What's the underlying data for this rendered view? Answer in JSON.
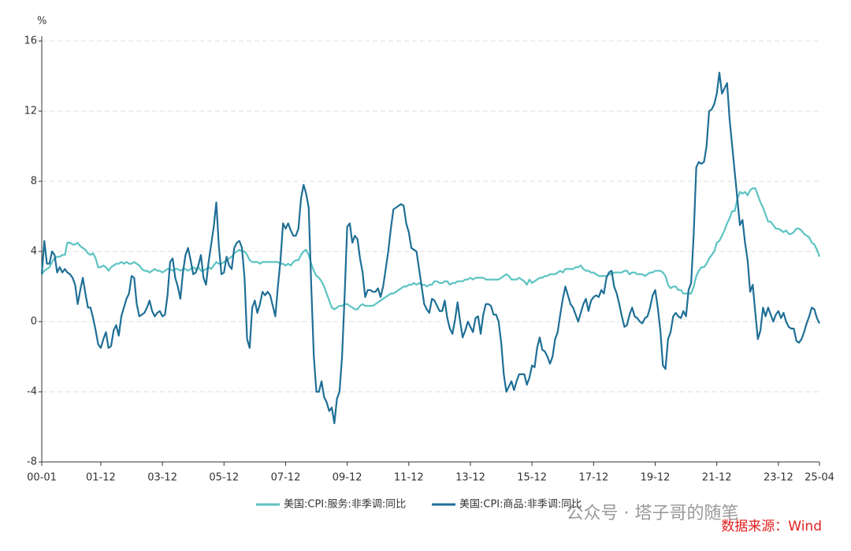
{
  "chart_data": {
    "type": "line",
    "y_unit": "%",
    "categories": [
      "00-01",
      null,
      null,
      null,
      null,
      null,
      null,
      null,
      null,
      null,
      null,
      null,
      null,
      null,
      null,
      null,
      null,
      null,
      null,
      null,
      null,
      null,
      null,
      "01-12",
      null,
      null,
      null,
      null,
      null,
      null,
      null,
      null,
      null,
      null,
      null,
      null,
      null,
      null,
      null,
      null,
      null,
      null,
      null,
      null,
      null,
      null,
      null,
      "03-12",
      null,
      null,
      null,
      null,
      null,
      null,
      null,
      null,
      null,
      null,
      null,
      null,
      null,
      null,
      null,
      null,
      null,
      null,
      null,
      null,
      null,
      null,
      null,
      "05-12",
      null,
      null,
      null,
      null,
      null,
      null,
      null,
      null,
      null,
      null,
      null,
      null,
      null,
      null,
      null,
      null,
      null,
      null,
      null,
      null,
      null,
      null,
      null,
      "07-12",
      null,
      null,
      null,
      null,
      null,
      null,
      null,
      null,
      null,
      null,
      null,
      null,
      null,
      null,
      null,
      null,
      null,
      null,
      null,
      null,
      null,
      null,
      null,
      "09-12",
      null,
      null,
      null,
      null,
      null,
      null,
      null,
      null,
      null,
      null,
      null,
      null,
      null,
      null,
      null,
      null,
      null,
      null,
      null,
      null,
      null,
      null,
      null,
      "11-12",
      null,
      null,
      null,
      null,
      null,
      null,
      null,
      null,
      null,
      null,
      null,
      null,
      null,
      null,
      null,
      null,
      null,
      null,
      null,
      null,
      null,
      null,
      null,
      "13-12",
      null,
      null,
      null,
      null,
      null,
      null,
      null,
      null,
      null,
      null,
      null,
      null,
      null,
      null,
      null,
      null,
      null,
      null,
      null,
      null,
      null,
      null,
      null,
      "15-12",
      null,
      null,
      null,
      null,
      null,
      null,
      null,
      null,
      null,
      null,
      null,
      null,
      null,
      null,
      null,
      null,
      null,
      null,
      null,
      null,
      null,
      null,
      null,
      "17-12",
      null,
      null,
      null,
      null,
      null,
      null,
      null,
      null,
      null,
      null,
      null,
      null,
      null,
      null,
      null,
      null,
      null,
      null,
      null,
      null,
      null,
      null,
      null,
      "19-12",
      null,
      null,
      null,
      null,
      null,
      null,
      null,
      null,
      null,
      null,
      null,
      null,
      null,
      null,
      null,
      null,
      null,
      null,
      null,
      null,
      null,
      null,
      null,
      "21-12",
      null,
      null,
      null,
      null,
      null,
      null,
      null,
      null,
      null,
      null,
      null,
      null,
      null,
      null,
      null,
      null,
      null,
      null,
      null,
      null,
      null,
      null,
      null,
      "23-12",
      null,
      null,
      null,
      null,
      null,
      null,
      null,
      null,
      null,
      null,
      null,
      null,
      null,
      null,
      null,
      "25-04"
    ],
    "series": [
      {
        "name": "美国:CPI:服务:非季调:同比",
        "color": "#5cc3c3",
        "values": [
          2.7,
          2.9,
          3.0,
          3.1,
          3.4,
          3.6,
          3.7,
          3.7,
          3.8,
          3.8,
          4.5,
          4.5,
          4.4,
          4.4,
          4.5,
          4.3,
          4.2,
          4.1,
          3.9,
          3.8,
          3.9,
          3.6,
          3.1,
          3.1,
          3.2,
          3.1,
          2.9,
          3.1,
          3.2,
          3.3,
          3.3,
          3.4,
          3.3,
          3.4,
          3.3,
          3.3,
          3.4,
          3.3,
          3.2,
          3.0,
          2.9,
          2.9,
          2.8,
          2.9,
          3.0,
          2.9,
          2.9,
          2.8,
          2.9,
          3.0,
          3.0,
          2.9,
          3.0,
          3.0,
          2.9,
          3.0,
          3.0,
          2.9,
          3.0,
          3.1,
          3.0,
          3.1,
          2.9,
          2.9,
          3.0,
          3.1,
          3.0,
          3.2,
          3.4,
          3.3,
          3.3,
          3.4,
          3.5,
          3.6,
          3.7,
          3.9,
          4.0,
          4.1,
          4.0,
          4.0,
          3.8,
          3.5,
          3.4,
          3.4,
          3.4,
          3.3,
          3.4,
          3.4,
          3.4,
          3.4,
          3.4,
          3.4,
          3.4,
          3.3,
          3.3,
          3.2,
          3.3,
          3.2,
          3.4,
          3.5,
          3.5,
          3.8,
          4.0,
          4.1,
          3.8,
          3.3,
          2.9,
          2.6,
          2.5,
          2.3,
          2.0,
          1.6,
          1.2,
          0.8,
          0.7,
          0.8,
          0.9,
          0.9,
          1.0,
          1.0,
          0.9,
          0.8,
          0.7,
          0.7,
          0.9,
          1.0,
          0.9,
          0.9,
          0.9,
          0.9,
          1.0,
          1.1,
          1.2,
          1.3,
          1.4,
          1.5,
          1.6,
          1.6,
          1.7,
          1.8,
          1.9,
          2.0,
          2.0,
          2.1,
          2.1,
          2.2,
          2.1,
          2.2,
          2.1,
          2.1,
          2.0,
          2.1,
          2.1,
          2.3,
          2.3,
          2.2,
          2.2,
          2.3,
          2.3,
          2.1,
          2.2,
          2.2,
          2.3,
          2.3,
          2.3,
          2.4,
          2.4,
          2.5,
          2.4,
          2.5,
          2.5,
          2.5,
          2.5,
          2.4,
          2.4,
          2.4,
          2.4,
          2.4,
          2.4,
          2.5,
          2.6,
          2.7,
          2.6,
          2.4,
          2.4,
          2.4,
          2.5,
          2.4,
          2.3,
          2.1,
          2.4,
          2.2,
          2.3,
          2.4,
          2.5,
          2.5,
          2.6,
          2.6,
          2.7,
          2.7,
          2.7,
          2.8,
          2.9,
          2.8,
          3.0,
          3.0,
          3.0,
          3.0,
          3.1,
          3.1,
          3.2,
          3.0,
          2.9,
          2.9,
          2.8,
          2.8,
          2.7,
          2.6,
          2.6,
          2.6,
          2.6,
          2.7,
          2.7,
          2.8,
          2.8,
          2.8,
          2.8,
          2.9,
          2.9,
          2.7,
          2.8,
          2.8,
          2.7,
          2.7,
          2.7,
          2.6,
          2.7,
          2.8,
          2.8,
          2.9,
          2.9,
          2.9,
          2.8,
          2.6,
          2.1,
          1.9,
          2.0,
          2.0,
          1.8,
          1.8,
          1.6,
          1.6,
          1.6,
          1.6,
          2.0,
          2.6,
          2.9,
          3.1,
          3.1,
          3.3,
          3.6,
          3.8,
          4.0,
          4.5,
          4.6,
          4.9,
          5.2,
          5.6,
          5.9,
          6.3,
          6.3,
          7.0,
          7.4,
          7.3,
          7.4,
          7.2,
          7.5,
          7.6,
          7.6,
          7.2,
          6.8,
          6.5,
          6.1,
          5.7,
          5.7,
          5.5,
          5.3,
          5.3,
          5.2,
          5.1,
          5.2,
          5.0,
          5.0,
          5.1,
          5.3,
          5.3,
          5.2,
          5.0,
          4.9,
          4.8,
          4.5,
          4.4,
          4.1,
          3.7
        ]
      },
      {
        "name": "美国:CPI:商品:非季调:同比",
        "color": "#1f6f96",
        "values": [
          2.7,
          4.6,
          3.3,
          3.3,
          4.0,
          3.8,
          2.8,
          3.1,
          2.8,
          3.0,
          2.8,
          2.7,
          2.5,
          2.1,
          1.0,
          1.8,
          2.5,
          1.6,
          0.8,
          0.8,
          0.2,
          -0.5,
          -1.3,
          -1.5,
          -1.0,
          -0.6,
          -1.5,
          -1.4,
          -0.5,
          -0.2,
          -0.8,
          0.3,
          0.8,
          1.3,
          1.6,
          2.6,
          2.5,
          1.0,
          0.3,
          0.4,
          0.5,
          0.8,
          1.2,
          0.6,
          0.3,
          0.5,
          0.6,
          0.3,
          0.4,
          1.5,
          3.4,
          3.6,
          2.5,
          2.0,
          1.3,
          2.8,
          3.8,
          4.2,
          3.5,
          2.7,
          2.8,
          3.2,
          3.8,
          2.5,
          2.1,
          3.4,
          4.4,
          5.4,
          6.8,
          4.3,
          2.7,
          2.8,
          3.7,
          3.2,
          3.0,
          4.2,
          4.5,
          4.6,
          4.2,
          2.5,
          -1.0,
          -1.5,
          0.8,
          1.2,
          0.5,
          1.0,
          1.7,
          1.5,
          1.7,
          1.5,
          0.9,
          0.3,
          2.0,
          3.5,
          5.6,
          5.3,
          5.6,
          5.2,
          4.9,
          4.9,
          5.3,
          7.0,
          7.8,
          7.3,
          6.5,
          2.0,
          -2.0,
          -4.0,
          -4.0,
          -3.4,
          -4.3,
          -4.6,
          -5.1,
          -4.9,
          -5.8,
          -4.4,
          -4.0,
          -2.0,
          1.5,
          5.4,
          5.6,
          4.5,
          4.9,
          4.7,
          3.6,
          2.8,
          1.4,
          1.8,
          1.8,
          1.7,
          1.7,
          1.9,
          1.4,
          2.0,
          3.0,
          4.0,
          5.3,
          6.4,
          6.5,
          6.6,
          6.7,
          6.6,
          5.6,
          5.1,
          4.2,
          4.1,
          4.0,
          3.0,
          2.0,
          1.0,
          0.7,
          0.5,
          1.3,
          1.2,
          0.9,
          0.6,
          0.6,
          1.2,
          0.2,
          -0.4,
          -0.7,
          0.1,
          1.1,
          0.0,
          -0.9,
          -0.5,
          0.0,
          -0.3,
          -0.6,
          0.2,
          0.3,
          -0.7,
          0.4,
          1.0,
          1.0,
          0.9,
          0.4,
          0.4,
          0.0,
          -1.2,
          -3.0,
          -4.0,
          -3.7,
          -3.4,
          -3.9,
          -3.4,
          -3.0,
          -3.0,
          -3.0,
          -3.6,
          -3.2,
          -2.5,
          -2.6,
          -1.5,
          -0.9,
          -1.6,
          -1.7,
          -2.0,
          -2.4,
          -2.0,
          -1.0,
          -0.6,
          0.4,
          1.3,
          2.0,
          1.5,
          1.0,
          0.8,
          0.4,
          0.0,
          0.5,
          1.0,
          1.3,
          0.6,
          1.2,
          1.4,
          1.5,
          1.4,
          1.8,
          1.6,
          2.5,
          2.8,
          2.9,
          2.0,
          1.6,
          1.0,
          0.3,
          -0.3,
          -0.2,
          0.4,
          0.8,
          0.3,
          0.2,
          0.0,
          -0.1,
          0.2,
          0.3,
          0.8,
          1.5,
          1.8,
          0.8,
          -0.5,
          -2.5,
          -2.7,
          -1.0,
          -0.6,
          0.3,
          0.5,
          0.3,
          0.2,
          0.6,
          0.3,
          1.8,
          2.2,
          5.0,
          8.8,
          9.1,
          9.0,
          9.1,
          10.0,
          12.0,
          12.1,
          12.4,
          13.0,
          14.2,
          13.0,
          13.3,
          13.6,
          11.5,
          10.0,
          8.5,
          7.0,
          5.5,
          5.8,
          4.5,
          3.5,
          1.7,
          2.1,
          0.5,
          -1.0,
          -0.5,
          0.8,
          0.3,
          0.8,
          0.4,
          0.0,
          0.4,
          0.6,
          0.2,
          0.5,
          0.0,
          -0.3,
          -0.4,
          -0.4,
          -1.1,
          -1.2,
          -1.0,
          -0.6,
          -0.1,
          0.3,
          0.8,
          0.7,
          0.2,
          -0.1
        ]
      }
    ],
    "ylim": [
      -8,
      16
    ],
    "yticks": [
      -8,
      -4,
      0,
      4,
      8,
      12,
      16
    ],
    "grid": true,
    "legend": "bottom",
    "watermark": "公众号 · 塔子哥的随笔",
    "source": "数据来源：Wind"
  }
}
